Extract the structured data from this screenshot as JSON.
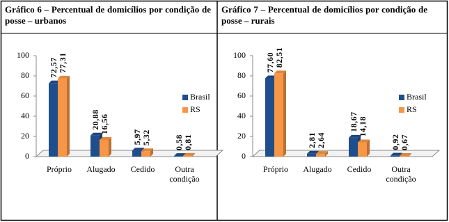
{
  "chart_data": [
    {
      "type": "bar",
      "title": "Gráfico 6 – Percentual de domicílios por condição de posse – urbanos",
      "categories": [
        "Próprio",
        "Alugado",
        "Cedido",
        "Outra condição"
      ],
      "series": [
        {
          "name": "Brasil",
          "color": "#1f4e8c",
          "values": [
            72.57,
            20.88,
            5.97,
            0.58
          ],
          "value_labels": [
            "72,57",
            "20,88",
            "5,97",
            "0,58"
          ]
        },
        {
          "name": "RS",
          "color": "#f79646",
          "values": [
            77.31,
            16.56,
            5.32,
            0.81
          ],
          "value_labels": [
            "77,31",
            "16,56",
            "5,32",
            "0,81"
          ]
        }
      ],
      "ylim": [
        0,
        100
      ],
      "yticks": [
        0,
        20,
        40,
        60,
        80,
        100
      ]
    },
    {
      "type": "bar",
      "title": "Gráfico 7 – Percentual de domicílios por condição de posse – rurais",
      "categories": [
        "Próprio",
        "Alugado",
        "Cedido",
        "Outra condição"
      ],
      "series": [
        {
          "name": "Brasil",
          "color": "#1f4e8c",
          "values": [
            77.6,
            2.81,
            18.67,
            0.92
          ],
          "value_labels": [
            "77,60",
            "2,81",
            "18,67",
            "0,92"
          ]
        },
        {
          "name": "RS",
          "color": "#f79646",
          "values": [
            82.51,
            2.64,
            14.18,
            0.67
          ],
          "value_labels": [
            "82,51",
            "2,64",
            "14,18",
            "0,67"
          ]
        }
      ],
      "ylim": [
        0,
        100
      ],
      "yticks": [
        0,
        20,
        40,
        60,
        80,
        100
      ]
    }
  ]
}
